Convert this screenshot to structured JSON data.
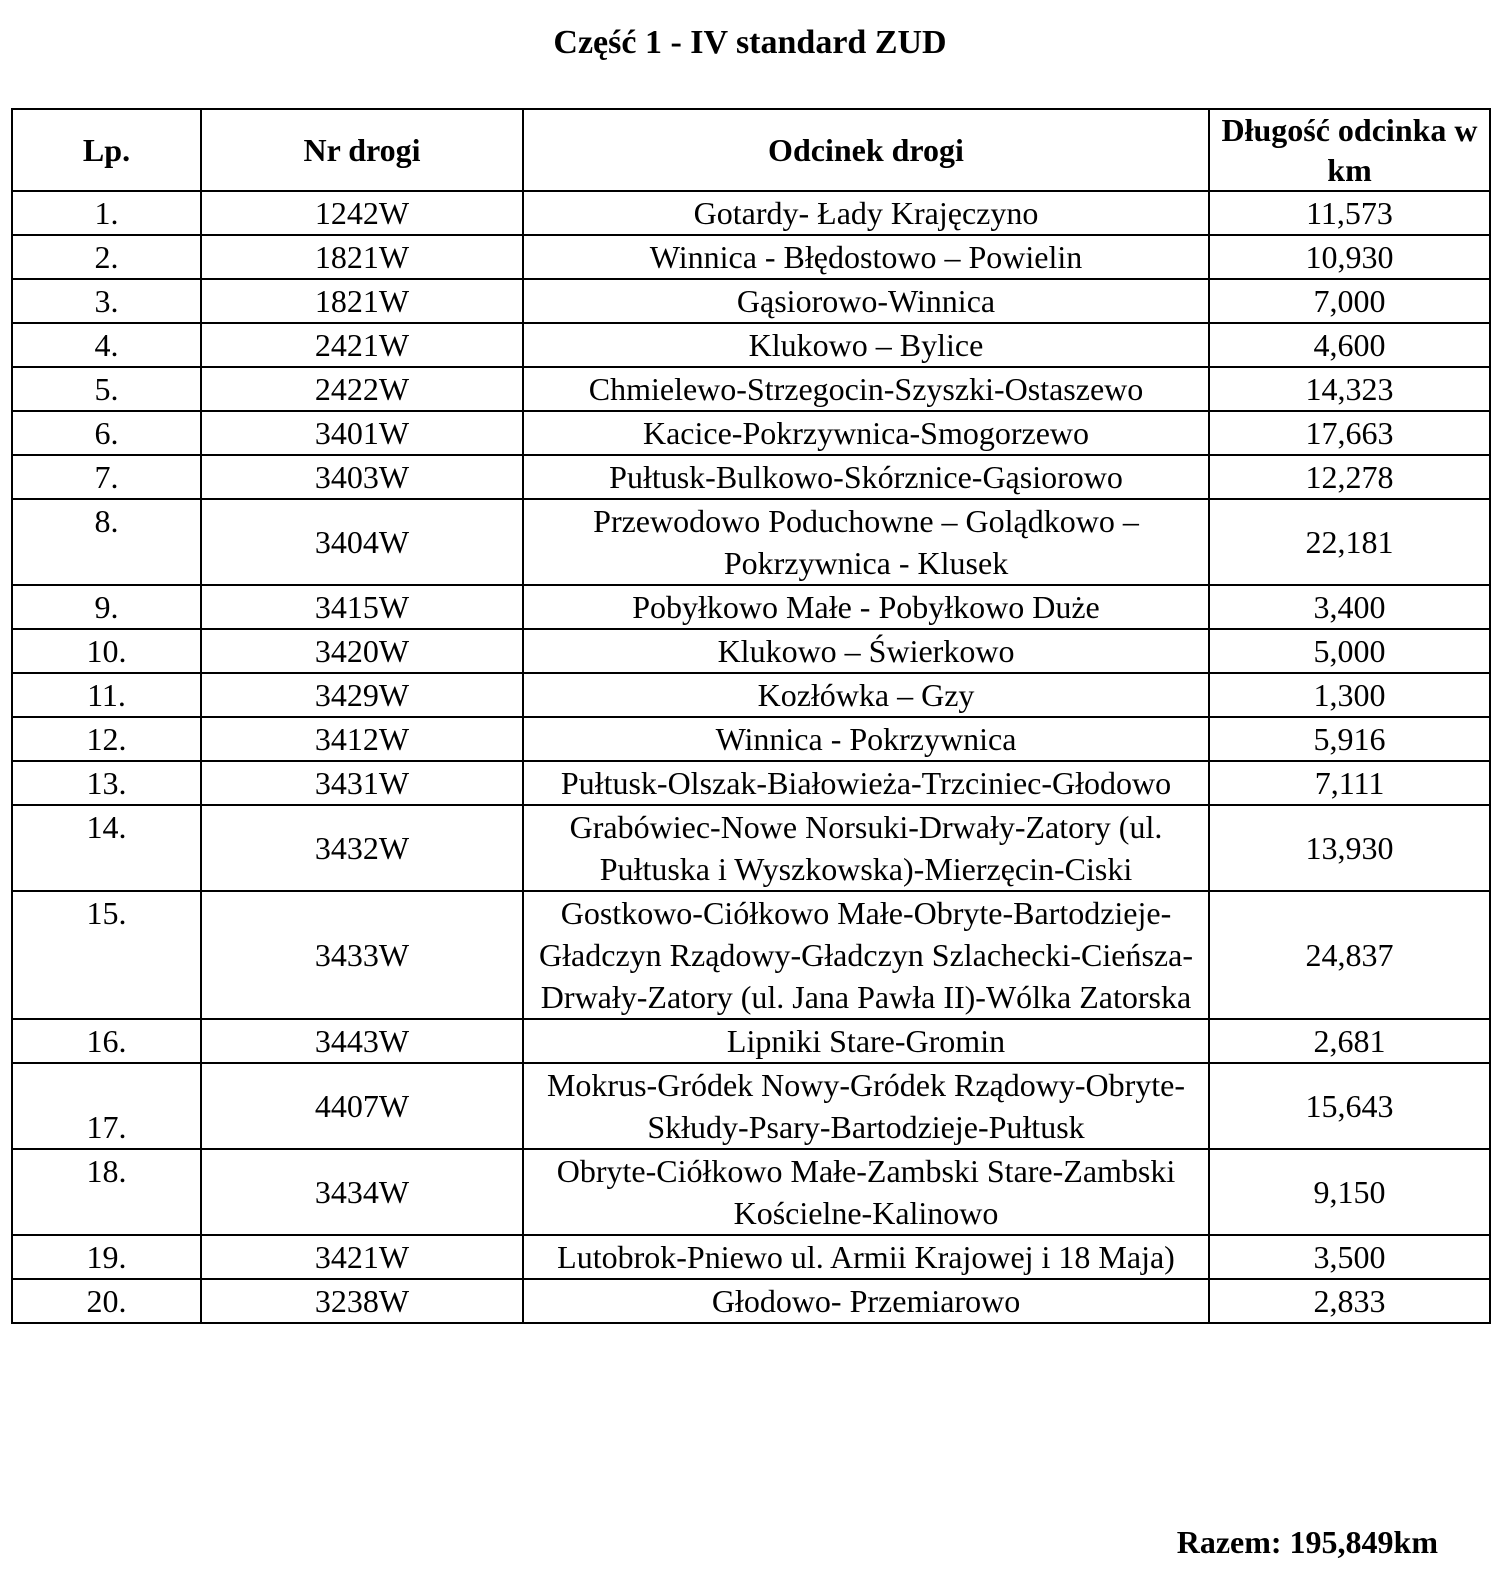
{
  "title": "Część 1 - IV standard ZUD",
  "table": {
    "headers": [
      "Lp.",
      "Nr drogi",
      "Odcinek drogi",
      "Długość odcinka w km"
    ],
    "rows": [
      {
        "lp": "1.",
        "nr": "1242W",
        "odcinek": "Gotardy- Łady Krajęczyno",
        "dlugosc": "11,573"
      },
      {
        "lp": "2.",
        "nr": "1821W",
        "odcinek": "Winnica - Błędostowo – Powielin",
        "dlugosc": "10,930"
      },
      {
        "lp": "3.",
        "nr": "1821W",
        "odcinek": "Gąsiorowo-Winnica",
        "dlugosc": "7,000"
      },
      {
        "lp": "4.",
        "nr": "2421W",
        "odcinek": "Klukowo – Bylice",
        "dlugosc": "4,600"
      },
      {
        "lp": "5.",
        "nr": "2422W",
        "odcinek": "Chmielewo-Strzegocin-Szyszki-Ostaszewo",
        "dlugosc": "14,323"
      },
      {
        "lp": "6.",
        "nr": "3401W",
        "odcinek": "Kacice-Pokrzywnica-Smogorzewo",
        "dlugosc": "17,663"
      },
      {
        "lp": "7.",
        "nr": "3403W",
        "odcinek": "Pułtusk-Bulkowo-Skórznice-Gąsiorowo",
        "dlugosc": "12,278"
      },
      {
        "lp": "8.",
        "nr": "3404W",
        "odcinek": "Przewodowo Poduchowne – Golądkowo – Pokrzywnica - Klusek",
        "dlugosc": "22,181"
      },
      {
        "lp": "9.",
        "nr": "3415W",
        "odcinek": "Pobyłkowo Małe - Pobyłkowo Duże",
        "dlugosc": "3,400"
      },
      {
        "lp": "10.",
        "nr": "3420W",
        "odcinek": "Klukowo – Świerkowo",
        "dlugosc": "5,000"
      },
      {
        "lp": "11.",
        "nr": "3429W",
        "odcinek": "Kozłówka – Gzy",
        "dlugosc": "1,300"
      },
      {
        "lp": "12.",
        "nr": "3412W",
        "odcinek": "Winnica - Pokrzywnica",
        "dlugosc": "5,916"
      },
      {
        "lp": "13.",
        "nr": "3431W",
        "odcinek": "Pułtusk-Olszak-Białowieża-Trzciniec-Głodowo",
        "dlugosc": "7,111"
      },
      {
        "lp": "14.",
        "nr": "3432W",
        "odcinek": "Grabówiec-Nowe Norsuki-Drwały-Zatory (ul. Pułtuska i Wyszkowska)-Mierzęcin-Ciski",
        "dlugosc": "13,930"
      },
      {
        "lp": "15.",
        "nr": "3433W",
        "odcinek": "Gostkowo-Ciółkowo Małe-Obryte-Bartodzieje-Gładczyn Rządowy-Gładczyn Szlachecki-Cieńsza-Drwały-Zatory (ul. Jana Pawła II)-Wólka Zatorska",
        "dlugosc": "24,837"
      },
      {
        "lp": "16.",
        "nr": "3443W",
        "odcinek": "Lipniki Stare-Gromin",
        "dlugosc": "2,681"
      },
      {
        "lp": "17.",
        "nr": "4407W",
        "odcinek": "Mokrus-Gródek Nowy-Gródek Rządowy-Obryte-Skłudy-Psary-Bartodzieje-Pułtusk",
        "dlugosc": "15,643"
      },
      {
        "lp": "18.",
        "nr": "3434W",
        "odcinek": "Obryte-Ciółkowo Małe-Zambski Stare-Zambski Kościelne-Kalinowo",
        "dlugosc": "9,150"
      },
      {
        "lp": "19.",
        "nr": "3421W",
        "odcinek": "Lutobrok-Pniewo ul. Armii Krajowej i 18 Maja)",
        "dlugosc": "3,500"
      },
      {
        "lp": "20.",
        "nr": "3238W",
        "odcinek": "Głodowo- Przemiarowo",
        "dlugosc": "2,833"
      }
    ]
  },
  "total": "Razem: 195,849km"
}
